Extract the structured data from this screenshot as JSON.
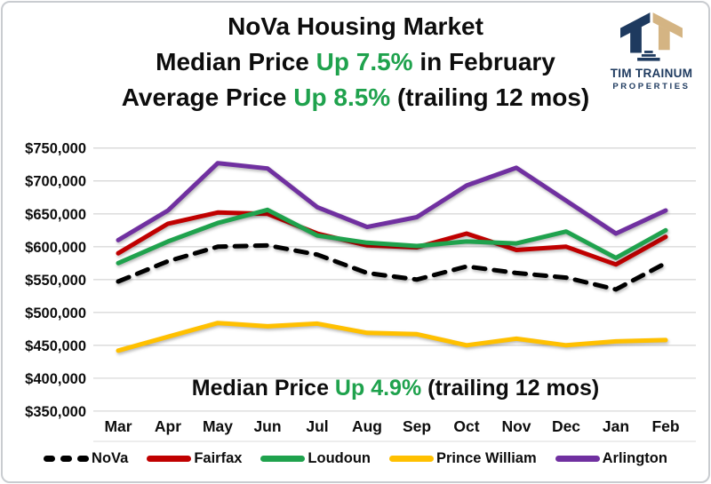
{
  "header": {
    "title_line1": "NoVa Housing Market",
    "title_line2_prefix": "Median Price ",
    "title_line2_highlight": "Up 7.5%",
    "title_line2_suffix": " in February",
    "title_line3_prefix": "Average Price ",
    "title_line3_highlight": "Up 8.5%",
    "title_line3_suffix": " (trailing 12 mos)",
    "highlight_color": "#1FA24D"
  },
  "logo": {
    "name": "TIM TRAINUM",
    "subtitle": "PROPERTIES",
    "navy": "#1E3A5F",
    "tan": "#D4B483"
  },
  "annotation": {
    "prefix": "Median Price ",
    "highlight": "Up 4.9%",
    "suffix": " (trailing 12 mos)"
  },
  "chart_data": {
    "type": "line",
    "title": "NoVa Housing Market — Median Price Up 7.5% in February — Average Price Up 8.5% (trailing 12 mos)",
    "annotation": "Median Price Up 4.9% (trailing 12 mos)",
    "x_categories": [
      "Mar",
      "Apr",
      "May",
      "Jun",
      "Jul",
      "Aug",
      "Sep",
      "Oct",
      "Nov",
      "Dec",
      "Jan",
      "Feb"
    ],
    "y_axis": {
      "min": 350000,
      "max": 750000,
      "step": 50000,
      "tick_labels": [
        "$750,000",
        "$700,000",
        "$650,000",
        "$600,000",
        "$550,000",
        "$500,000",
        "$450,000",
        "$400,000",
        "$350,000"
      ]
    },
    "ylim": [
      350000,
      750000
    ],
    "grid": true,
    "legend_position": "bottom",
    "series": [
      {
        "name": "NoVa",
        "color": "#000000",
        "style": "dashed",
        "values": [
          547000,
          578000,
          600000,
          602000,
          588000,
          560000,
          550000,
          570000,
          560000,
          553000,
          535000,
          575000
        ]
      },
      {
        "name": "Fairfax",
        "color": "#C00000",
        "style": "solid",
        "values": [
          590000,
          635000,
          652000,
          650000,
          620000,
          602000,
          599000,
          620000,
          595000,
          600000,
          573000,
          615000
        ]
      },
      {
        "name": "Loudoun",
        "color": "#1FA24D",
        "style": "solid",
        "values": [
          575000,
          608000,
          636000,
          656000,
          617000,
          606000,
          601000,
          608000,
          605000,
          623000,
          583000,
          625000
        ]
      },
      {
        "name": "Prince William",
        "color": "#FFC000",
        "style": "solid",
        "values": [
          442000,
          463000,
          484000,
          479000,
          483000,
          469000,
          467000,
          450000,
          460000,
          450000,
          456000,
          458000
        ]
      },
      {
        "name": "Arlington",
        "color": "#7030A0",
        "style": "solid",
        "values": [
          610000,
          655000,
          727000,
          719000,
          660000,
          630000,
          645000,
          693000,
          720000,
          670000,
          620000,
          655000
        ]
      }
    ]
  }
}
